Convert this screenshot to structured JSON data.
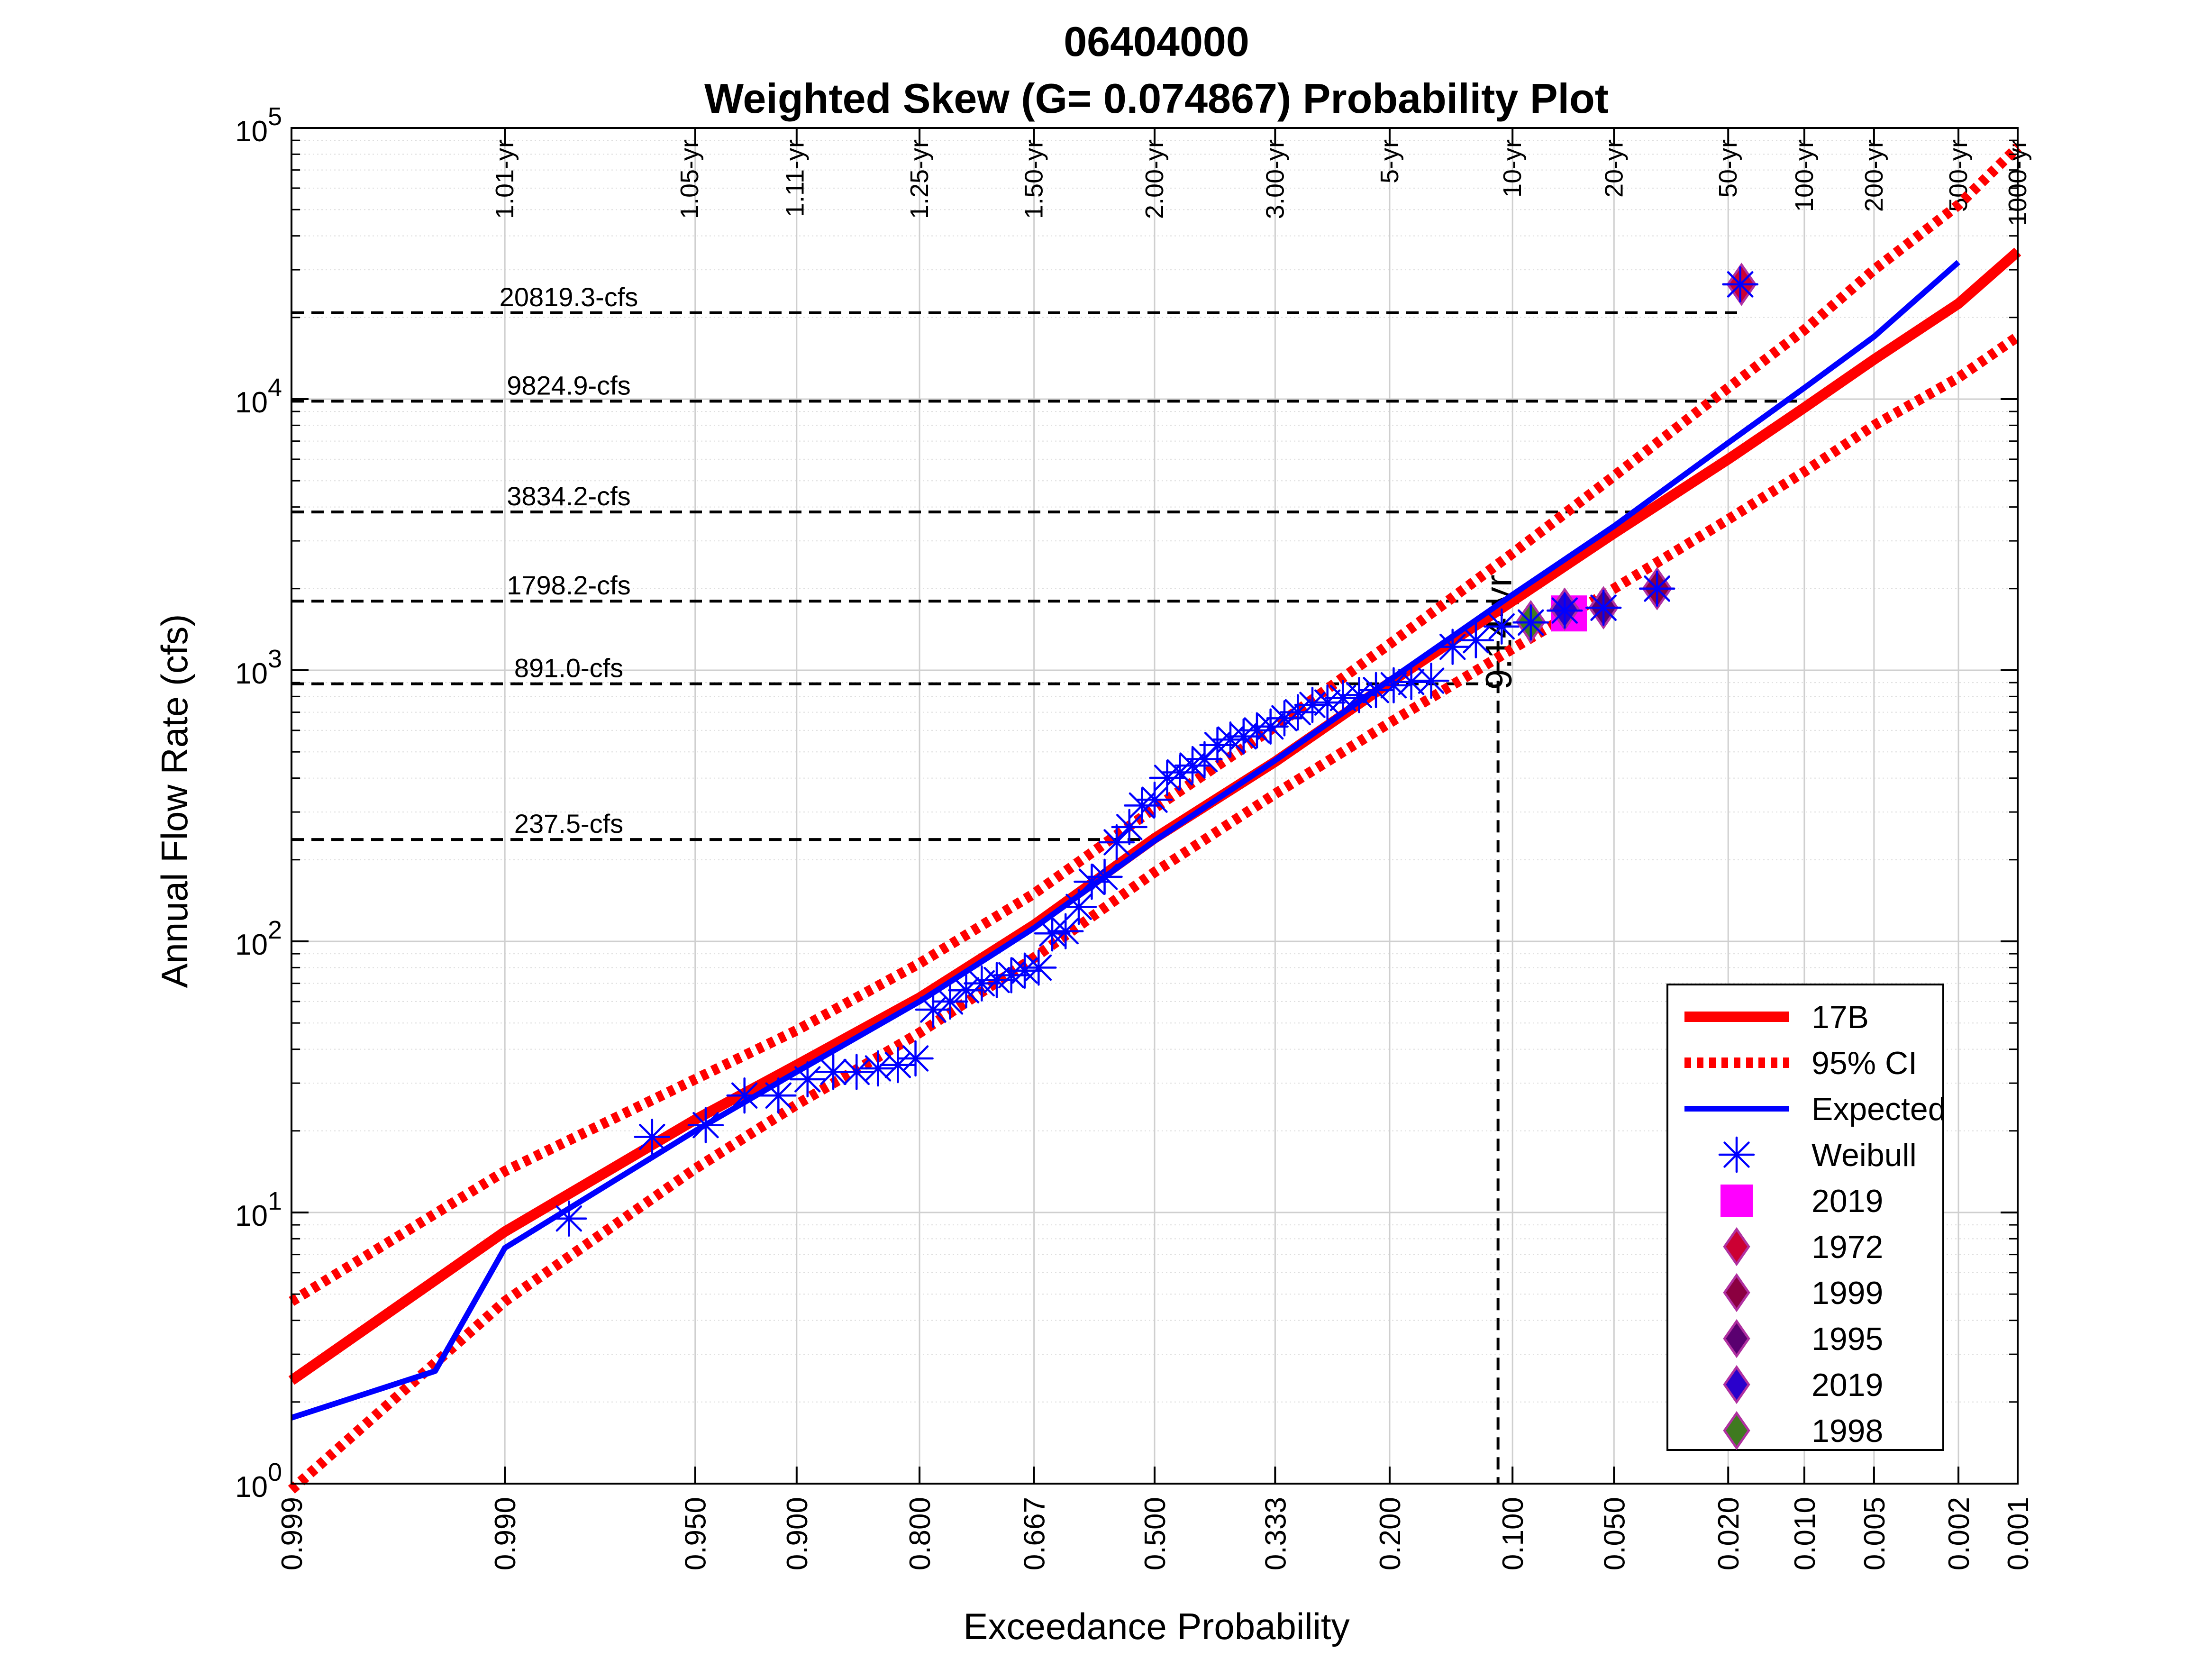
{
  "chart_data": {
    "type": "line",
    "title": "06404000",
    "subtitle": "Weighted Skew (G= 0.074867) Probability Plot",
    "xlabel": "Exceedance Probability",
    "ylabel": "Annual Flow Rate (cfs)",
    "x_scale": "normal-probability",
    "y_scale": "log",
    "xlim": [
      0.999,
      0.001
    ],
    "ylim": [
      1,
      100000
    ],
    "grid": true,
    "legend_position": "bottom-right",
    "x_ticks": [
      "0.999",
      "0.990",
      "0.950",
      "0.900",
      "0.800",
      "0.667",
      "0.500",
      "0.333",
      "0.200",
      "0.100",
      "0.050",
      "0.020",
      "0.010",
      "0.005",
      "0.002",
      "0.001"
    ],
    "y_ticks": [
      {
        "value": 1,
        "base": "10",
        "exp": "0"
      },
      {
        "value": 10,
        "base": "10",
        "exp": "1"
      },
      {
        "value": 100,
        "base": "10",
        "exp": "2"
      },
      {
        "value": 1000,
        "base": "10",
        "exp": "3"
      },
      {
        "value": 10000,
        "base": "10",
        "exp": "4"
      },
      {
        "value": 100000,
        "base": "10",
        "exp": "5"
      }
    ],
    "return_periods": [
      {
        "label": "1.01-yr",
        "p": 0.99
      },
      {
        "label": "1.05-yr",
        "p": 0.952
      },
      {
        "label": "1.11-yr",
        "p": 0.901
      },
      {
        "label": "1.25-yr",
        "p": 0.8
      },
      {
        "label": "1.50-yr",
        "p": 0.667
      },
      {
        "label": "2.00-yr",
        "p": 0.5
      },
      {
        "label": "3.00-yr",
        "p": 0.333
      },
      {
        "label": "5-yr",
        "p": 0.2
      },
      {
        "label": "10-yr",
        "p": 0.1
      },
      {
        "label": "20-yr",
        "p": 0.05
      },
      {
        "label": "50-yr",
        "p": 0.02
      },
      {
        "label": "100-yr",
        "p": 0.01
      },
      {
        "label": "200-yr",
        "p": 0.005
      },
      {
        "label": "500-yr",
        "p": 0.002
      },
      {
        "label": "1000-yr",
        "p": 0.001
      }
    ],
    "flow_lines": [
      {
        "label": "20819.3-cfs",
        "value": 20819.3,
        "end_p": 0.018
      },
      {
        "label": "9824.9-cfs",
        "value": 9824.9,
        "end_p": 0.01
      },
      {
        "label": "3834.2-cfs",
        "value": 3834.2,
        "end_p": 0.04
      },
      {
        "label": "1798.2-cfs",
        "value": 1798.2,
        "end_p": 0.11
      },
      {
        "label": "891.0-cfs",
        "value": 891.0,
        "end_p": 0.113
      },
      {
        "label": "237.5-cfs",
        "value": 237.5,
        "end_p": 0.52
      }
    ],
    "vertical_marker": {
      "label": "9.14-yr",
      "p": 0.1094,
      "top_value": 1798.2
    },
    "series": [
      {
        "name": "17B",
        "style": "solid-thick",
        "color": "#ff0000",
        "points": [
          [
            0.999,
            2.4
          ],
          [
            0.99,
            8.5
          ],
          [
            0.95,
            22
          ],
          [
            0.9,
            35
          ],
          [
            0.8,
            62
          ],
          [
            0.667,
            115
          ],
          [
            0.5,
            240
          ],
          [
            0.333,
            460
          ],
          [
            0.2,
            900
          ],
          [
            0.1,
            1800
          ],
          [
            0.05,
            3200
          ],
          [
            0.02,
            6000
          ],
          [
            0.01,
            9300
          ],
          [
            0.005,
            14000
          ],
          [
            0.002,
            22500
          ],
          [
            0.001,
            35000
          ]
        ]
      },
      {
        "name": "95% CI",
        "style": "dotted",
        "color": "#ff0000",
        "points": [
          [
            0.999,
            4.7
          ],
          [
            0.99,
            14.2
          ],
          [
            0.95,
            31
          ],
          [
            0.9,
            47
          ],
          [
            0.8,
            83
          ],
          [
            0.667,
            150
          ],
          [
            0.5,
            310
          ],
          [
            0.333,
            620
          ],
          [
            0.2,
            1250
          ],
          [
            0.1,
            2700
          ],
          [
            0.05,
            5200
          ],
          [
            0.02,
            11000
          ],
          [
            0.01,
            18000
          ],
          [
            0.005,
            30000
          ],
          [
            0.002,
            52000
          ],
          [
            0.001,
            85000
          ]
        ]
      },
      {
        "name": "",
        "style": "dotted",
        "color": "#ff0000",
        "points": [
          [
            0.999,
            0.95
          ],
          [
            0.99,
            4.7
          ],
          [
            0.95,
            14.5
          ],
          [
            0.9,
            25
          ],
          [
            0.8,
            46
          ],
          [
            0.667,
            87
          ],
          [
            0.5,
            180
          ],
          [
            0.333,
            350
          ],
          [
            0.2,
            640
          ],
          [
            0.1,
            1200
          ],
          [
            0.05,
            2000
          ],
          [
            0.02,
            3600
          ],
          [
            0.01,
            5400
          ],
          [
            0.005,
            8000
          ],
          [
            0.002,
            12000
          ],
          [
            0.001,
            17000
          ]
        ]
      },
      {
        "name": "Expected",
        "style": "solid",
        "color": "#0000ff",
        "points": [
          [
            0.999,
            1.75
          ],
          [
            0.995,
            2.6
          ],
          [
            0.99,
            7.4
          ],
          [
            0.95,
            20
          ],
          [
            0.9,
            33
          ],
          [
            0.8,
            60
          ],
          [
            0.667,
            112
          ],
          [
            0.5,
            235
          ],
          [
            0.333,
            465
          ],
          [
            0.2,
            920
          ],
          [
            0.1,
            1900
          ],
          [
            0.05,
            3400
          ],
          [
            0.02,
            6900
          ],
          [
            0.01,
            11000
          ],
          [
            0.005,
            17000
          ],
          [
            0.002,
            32000
          ]
        ]
      }
    ],
    "weibull": {
      "name": "Weibull",
      "color": "#0000ff",
      "points": [
        [
          0.982,
          9.5
        ],
        [
          0.964,
          19
        ],
        [
          0.946,
          21
        ],
        [
          0.929,
          27
        ],
        [
          0.911,
          27
        ],
        [
          0.893,
          31
        ],
        [
          0.875,
          33
        ],
        [
          0.857,
          33
        ],
        [
          0.839,
          34
        ],
        [
          0.821,
          35
        ],
        [
          0.804,
          37
        ],
        [
          0.786,
          56
        ],
        [
          0.768,
          60
        ],
        [
          0.75,
          66
        ],
        [
          0.732,
          70
        ],
        [
          0.714,
          72
        ],
        [
          0.696,
          75
        ],
        [
          0.679,
          78
        ],
        [
          0.661,
          80
        ],
        [
          0.643,
          107
        ],
        [
          0.625,
          109
        ],
        [
          0.607,
          134
        ],
        [
          0.589,
          166
        ],
        [
          0.571,
          173
        ],
        [
          0.554,
          232
        ],
        [
          0.536,
          264
        ],
        [
          0.518,
          317
        ],
        [
          0.5,
          333
        ],
        [
          0.482,
          401
        ],
        [
          0.464,
          420
        ],
        [
          0.446,
          445
        ],
        [
          0.429,
          470
        ],
        [
          0.411,
          530
        ],
        [
          0.393,
          555
        ],
        [
          0.375,
          570
        ],
        [
          0.357,
          600
        ],
        [
          0.339,
          620
        ],
        [
          0.321,
          665
        ],
        [
          0.304,
          700
        ],
        [
          0.286,
          745
        ],
        [
          0.268,
          760
        ],
        [
          0.25,
          790
        ],
        [
          0.232,
          810
        ],
        [
          0.214,
          845
        ],
        [
          0.196,
          880
        ],
        [
          0.179,
          905
        ],
        [
          0.161,
          915
        ],
        [
          0.143,
          1220
        ],
        [
          0.125,
          1290
        ],
        [
          0.107,
          1450
        ],
        [
          0.089,
          1500
        ],
        [
          0.071,
          1660
        ],
        [
          0.054,
          1700
        ],
        [
          0.036,
          2000
        ],
        [
          0.018,
          26500
        ]
      ]
    },
    "highlights": [
      {
        "name": "2019",
        "marker": "square",
        "color": "#ff00ff",
        "edge": "#ff00ff",
        "p": 0.069,
        "value": 1620
      },
      {
        "name": "1972",
        "marker": "diamond",
        "color": "#cc0033",
        "edge": "#b030a0",
        "p": 0.0178,
        "value": 26500
      },
      {
        "name": "1999",
        "marker": "diamond",
        "color": "#8b0040",
        "edge": "#b030a0",
        "p": 0.036,
        "value": 2000
      },
      {
        "name": "1995",
        "marker": "diamond",
        "color": "#5a0070",
        "edge": "#b030a0",
        "p": 0.054,
        "value": 1700
      },
      {
        "name": "2019",
        "marker": "diamond",
        "color": "#2a00cc",
        "edge": "#b030a0",
        "p": 0.071,
        "value": 1680
      },
      {
        "name": "1998",
        "marker": "diamond",
        "color": "#3f7a20",
        "edge": "#b030a0",
        "p": 0.089,
        "value": 1510
      }
    ]
  }
}
